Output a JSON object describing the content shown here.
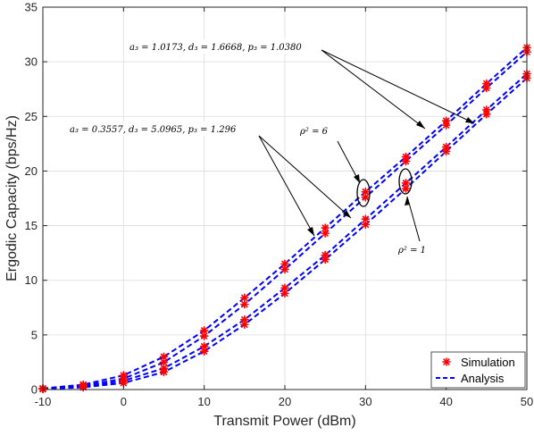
{
  "chart_data": {
    "type": "line",
    "xlabel": "Transmit Power (dBm)",
    "ylabel": "Ergodic Capacity (bps/Hz)",
    "xlim": [
      -10,
      50
    ],
    "ylim": [
      0,
      35
    ],
    "xticks": [
      -10,
      0,
      10,
      20,
      30,
      40,
      50
    ],
    "yticks": [
      0,
      5,
      10,
      15,
      20,
      25,
      30,
      35
    ],
    "grid": true,
    "legend_position": "bottom-right",
    "legend": [
      {
        "label": "Simulation",
        "style": "marker",
        "color": "#ff0000"
      },
      {
        "label": "Analysis",
        "style": "dashed",
        "color": "#0000ff"
      }
    ],
    "x": [
      -10,
      -5,
      0,
      5,
      10,
      15,
      20,
      25,
      30,
      35,
      40,
      45,
      50
    ],
    "series": [
      {
        "values": [
          0.1,
          0.45,
          1.3,
          3.0,
          5.4,
          8.4,
          11.5,
          14.8,
          18.1,
          21.3,
          24.6,
          28.0,
          31.3
        ]
      },
      {
        "values": [
          0.1,
          0.35,
          1.0,
          2.5,
          4.9,
          7.8,
          11.0,
          14.3,
          17.6,
          20.9,
          24.2,
          27.6,
          30.9
        ]
      },
      {
        "values": [
          0.05,
          0.25,
          0.8,
          1.95,
          3.95,
          6.4,
          9.3,
          12.3,
          15.6,
          18.9,
          22.2,
          25.6,
          28.9
        ]
      },
      {
        "values": [
          0.05,
          0.2,
          0.6,
          1.6,
          3.5,
          5.95,
          8.8,
          11.9,
          15.1,
          18.4,
          21.8,
          25.2,
          28.5
        ]
      }
    ],
    "annotations": [
      {
        "text": "a₃ = 1.0173, d₃ = 1.6668, p₃ = 1.0380"
      },
      {
        "text": "a₃ = 0.3557, d₃ = 5.0965, p₃ = 1.296"
      },
      {
        "text": "ρ² = 6"
      },
      {
        "text": "ρ² = 1"
      }
    ]
  }
}
